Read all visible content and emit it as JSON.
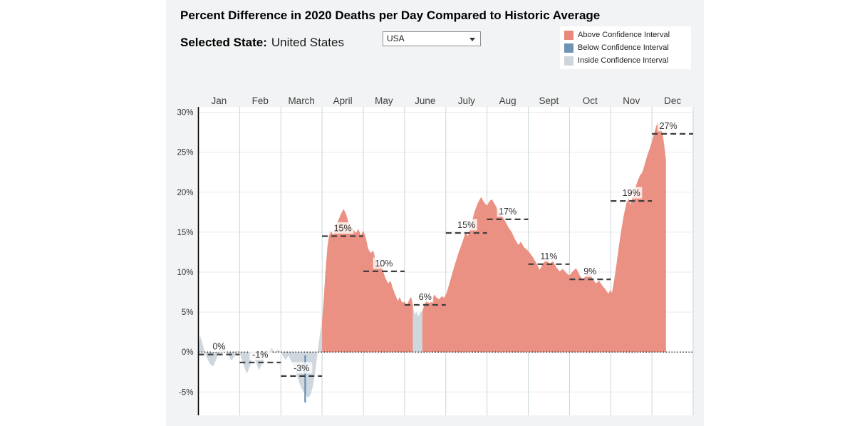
{
  "header": {
    "title": "Percent Difference in 2020 Deaths per Day Compared to Historic Average",
    "selected_state_label": "Selected State:",
    "selected_state_value": "United States",
    "state_select": {
      "value": "USA"
    }
  },
  "legend": {
    "items": [
      {
        "key": "above",
        "label": "Above Confidence Interval",
        "color": "#e8897b"
      },
      {
        "key": "below",
        "label": "Below Confidence Interval",
        "color": "#6e94b4"
      },
      {
        "key": "inside",
        "label": "Inside Confidence Interval",
        "color": "#cdd5dd"
      }
    ]
  },
  "chart_data": {
    "type": "area",
    "title": "Percent Difference in 2020 Deaths per Day Compared to Historic Average",
    "x_axis": {
      "months": [
        "Jan",
        "Feb",
        "March",
        "April",
        "May",
        "June",
        "July",
        "Aug",
        "Sept",
        "Oct",
        "Nov",
        "Dec"
      ]
    },
    "y_axis": {
      "ticks": [
        "30%",
        "25%",
        "20%",
        "15%",
        "10%",
        "5%",
        "0%",
        "-5%"
      ],
      "tick_values": [
        30,
        25,
        20,
        15,
        10,
        5,
        0,
        -5
      ],
      "range": [
        -7.9,
        30.7
      ]
    },
    "monthly_averages": [
      {
        "month": "Jan",
        "label": "0%",
        "value": 0,
        "exact_value": -0.3
      },
      {
        "month": "Feb",
        "label": "-1%",
        "value": -1,
        "exact_value": -1.3
      },
      {
        "month": "March",
        "label": "-3%",
        "value": -3,
        "exact_value": -3.0
      },
      {
        "month": "April",
        "label": "15%",
        "value": 15,
        "exact_value": 14.5
      },
      {
        "month": "May",
        "label": "10%",
        "value": 10,
        "exact_value": 10.1
      },
      {
        "month": "June",
        "label": "6%",
        "value": 6,
        "exact_value": 5.9
      },
      {
        "month": "July",
        "label": "15%",
        "value": 15,
        "exact_value": 14.9
      },
      {
        "month": "Aug",
        "label": "17%",
        "value": 17,
        "exact_value": 16.6
      },
      {
        "month": "Sept",
        "label": "11%",
        "value": 11,
        "exact_value": 11.0
      },
      {
        "month": "Oct",
        "label": "9%",
        "value": 9,
        "exact_value": 9.1
      },
      {
        "month": "Nov",
        "label": "19%",
        "value": 19,
        "exact_value": 18.9
      },
      {
        "month": "Dec",
        "label": "27%",
        "value": 27,
        "exact_value": 27.3,
        "label_dx": -6
      }
    ],
    "series_note": "daily percent difference vs historic average; x in month units (0 = Jan 1), data ends ~Dec 10",
    "segments": [
      {
        "category": "inside",
        "points": [
          [
            0,
            0.4
          ],
          [
            0.04,
            2.1
          ],
          [
            0.1,
            1.0
          ],
          [
            0.18,
            -0.4
          ],
          [
            0.28,
            -1.5
          ],
          [
            0.36,
            -1.8
          ],
          [
            0.44,
            -0.8
          ],
          [
            0.52,
            0.4
          ],
          [
            0.6,
            1.4
          ],
          [
            0.66,
            0.8
          ],
          [
            0.74,
            -0.5
          ],
          [
            0.8,
            -1.1
          ],
          [
            0.88,
            -0.5
          ],
          [
            0.95,
            0.1
          ],
          [
            1,
            -0.1
          ],
          [
            1.05,
            -0.9
          ],
          [
            1.12,
            -2.0
          ],
          [
            1.18,
            -2.7
          ],
          [
            1.25,
            -1.8
          ],
          [
            1.32,
            -0.6
          ],
          [
            1.4,
            -1.3
          ],
          [
            1.47,
            -2.3
          ],
          [
            1.54,
            -1.5
          ],
          [
            1.62,
            -0.5
          ],
          [
            1.7,
            0.3
          ],
          [
            1.78,
            0.5
          ],
          [
            1.85,
            -0.2
          ],
          [
            1.92,
            0.3
          ],
          [
            2,
            0
          ],
          [
            2.06,
            -0.6
          ],
          [
            2.12,
            -1.0
          ],
          [
            2.18,
            -0.4
          ],
          [
            2.25,
            -1.1
          ],
          [
            2.32,
            -2.0
          ],
          [
            2.4,
            -3.1
          ],
          [
            2.48,
            -4.3
          ],
          [
            2.55,
            -5.0
          ],
          [
            2.6,
            -5.3
          ],
          [
            2.66,
            -5.7
          ],
          [
            2.72,
            -5.4
          ],
          [
            2.78,
            -4.2
          ],
          [
            2.84,
            -2.2
          ],
          [
            2.9,
            0.3
          ],
          [
            2.95,
            2.3
          ],
          [
            3,
            3.9
          ]
        ]
      },
      {
        "category": "above",
        "points": [
          [
            3,
            3.9
          ],
          [
            3.04,
            6.5
          ],
          [
            3.08,
            10.0
          ],
          [
            3.13,
            13.2
          ],
          [
            3.17,
            14.6
          ],
          [
            3.22,
            15.1
          ],
          [
            3.27,
            14.7
          ],
          [
            3.32,
            15.6
          ],
          [
            3.38,
            16.3
          ],
          [
            3.45,
            17.2
          ],
          [
            3.52,
            17.9
          ],
          [
            3.58,
            17.3
          ],
          [
            3.64,
            16.2
          ],
          [
            3.7,
            15.8
          ],
          [
            3.76,
            15.3
          ],
          [
            3.82,
            14.9
          ],
          [
            3.88,
            15.4
          ],
          [
            3.94,
            14.6
          ],
          [
            4,
            15.2
          ],
          [
            4.06,
            14.3
          ],
          [
            4.12,
            12.9
          ],
          [
            4.18,
            12.4
          ],
          [
            4.24,
            12.7
          ],
          [
            4.3,
            11.5
          ],
          [
            4.36,
            10.6
          ],
          [
            4.42,
            11.2
          ],
          [
            4.48,
            10.1
          ],
          [
            4.54,
            9.2
          ],
          [
            4.6,
            8.6
          ],
          [
            4.66,
            8.9
          ],
          [
            4.72,
            7.9
          ],
          [
            4.78,
            7.1
          ],
          [
            4.84,
            6.4
          ],
          [
            4.88,
            6.9
          ],
          [
            4.94,
            6.2
          ],
          [
            5,
            6.3
          ],
          [
            5.06,
            5.9
          ],
          [
            5.12,
            6.6
          ],
          [
            5.16,
            6.9
          ],
          [
            5.2,
            5.9
          ]
        ]
      },
      {
        "category": "inside",
        "points": [
          [
            5.2,
            5.9
          ],
          [
            5.24,
            4.7
          ],
          [
            5.29,
            5.0
          ],
          [
            5.33,
            4.5
          ],
          [
            5.38,
            4.9
          ],
          [
            5.43,
            5.1
          ]
        ]
      },
      {
        "category": "above",
        "points": [
          [
            5.43,
            5.1
          ],
          [
            5.5,
            6.2
          ],
          [
            5.55,
            6.6
          ],
          [
            5.6,
            6.1
          ],
          [
            5.66,
            6.4
          ],
          [
            5.72,
            7.2
          ],
          [
            5.78,
            6.8
          ],
          [
            5.84,
            6.6
          ],
          [
            5.9,
            7.0
          ],
          [
            5.96,
            6.8
          ],
          [
            6.02,
            7.4
          ],
          [
            6.1,
            8.8
          ],
          [
            6.2,
            10.6
          ],
          [
            6.3,
            12.3
          ],
          [
            6.4,
            13.7
          ],
          [
            6.48,
            15.0
          ],
          [
            6.54,
            14.5
          ],
          [
            6.62,
            16.1
          ],
          [
            6.7,
            17.6
          ],
          [
            6.78,
            18.7
          ],
          [
            6.86,
            19.4
          ],
          [
            6.92,
            18.8
          ],
          [
            7,
            18.3
          ],
          [
            7.06,
            18.9
          ],
          [
            7.12,
            19.1
          ],
          [
            7.2,
            18.4
          ],
          [
            7.28,
            17.6
          ],
          [
            7.36,
            17.0
          ],
          [
            7.44,
            16.4
          ],
          [
            7.52,
            15.6
          ],
          [
            7.6,
            15.0
          ],
          [
            7.68,
            14.1
          ],
          [
            7.76,
            13.4
          ],
          [
            7.82,
            13.8
          ],
          [
            7.9,
            13.1
          ],
          [
            7.97,
            12.8
          ],
          [
            8.04,
            12.4
          ],
          [
            8.12,
            11.8
          ],
          [
            8.2,
            11.1
          ],
          [
            8.28,
            10.3
          ],
          [
            8.36,
            11.1
          ],
          [
            8.44,
            11.6
          ],
          [
            8.52,
            11.0
          ],
          [
            8.6,
            11.4
          ],
          [
            8.68,
            10.6
          ],
          [
            8.76,
            10.1
          ],
          [
            8.84,
            10.4
          ],
          [
            8.92,
            9.9
          ],
          [
            9,
            9.6
          ],
          [
            9.08,
            10.1
          ],
          [
            9.16,
            10.5
          ],
          [
            9.24,
            9.7
          ],
          [
            9.32,
            9.0
          ],
          [
            9.4,
            9.6
          ],
          [
            9.48,
            9.9
          ],
          [
            9.56,
            9.2
          ],
          [
            9.64,
            8.6
          ],
          [
            9.72,
            8.9
          ],
          [
            9.8,
            8.3
          ],
          [
            9.88,
            7.8
          ],
          [
            9.94,
            7.3
          ],
          [
            10,
            7.8
          ],
          [
            10.03,
            7.4
          ],
          [
            10.08,
            8.9
          ],
          [
            10.14,
            11.0
          ],
          [
            10.2,
            13.3
          ],
          [
            10.26,
            15.4
          ],
          [
            10.32,
            17.2
          ],
          [
            10.38,
            18.6
          ],
          [
            10.44,
            19.2
          ],
          [
            10.48,
            18.4
          ],
          [
            10.54,
            19.6
          ],
          [
            10.6,
            20.6
          ],
          [
            10.66,
            21.5
          ],
          [
            10.72,
            22.2
          ],
          [
            10.76,
            22.4
          ],
          [
            10.82,
            23.4
          ],
          [
            10.88,
            24.5
          ],
          [
            10.94,
            25.4
          ],
          [
            11,
            26.3
          ],
          [
            11.05,
            27.3
          ],
          [
            11.1,
            28.2
          ],
          [
            11.14,
            28.7
          ],
          [
            11.18,
            28.4
          ],
          [
            11.22,
            27.9
          ],
          [
            11.26,
            27.2
          ],
          [
            11.3,
            25.8
          ],
          [
            11.34,
            24.0
          ]
        ]
      }
    ],
    "below_marker": {
      "x": 2.59,
      "top": -0.4,
      "bottom": -6.3
    },
    "data_end_x": 11.34,
    "zero_line": true,
    "grid": {
      "horizontal": true,
      "vertical_month_lines": true
    },
    "colors": {
      "above": "#ea9183",
      "below": "#6e94b4",
      "inside": "#cfd7de",
      "dashed_average_line": "#3d3d3d",
      "zero_dotted_line": "#000000",
      "v_gridline": "#c9d5dc",
      "h_gridline": "#eaeaea",
      "axis": "#000000",
      "panel_background": "#f2f3f4",
      "plot_background": "#ffffff"
    }
  }
}
